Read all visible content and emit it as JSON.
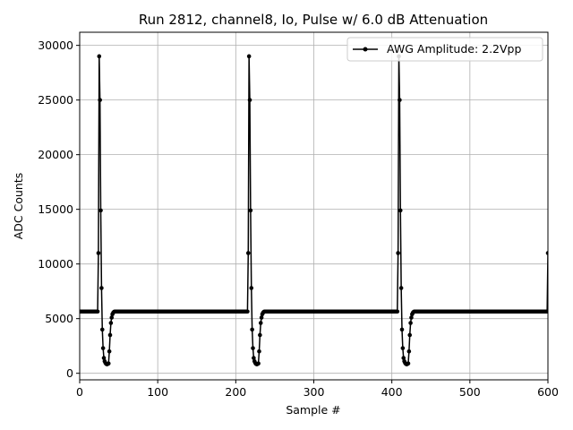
{
  "chart_data": {
    "type": "line",
    "title": "Run 2812, channel8, Io, Pulse w/ 6.0 dB Attenuation",
    "xlabel": "Sample #",
    "ylabel": "ADC Counts",
    "xlim": [
      0,
      600
    ],
    "ylim": [
      -600,
      31200
    ],
    "xticks": [
      0,
      100,
      200,
      300,
      400,
      500,
      600
    ],
    "yticks": [
      0,
      5000,
      10000,
      15000,
      20000,
      25000,
      30000
    ],
    "grid": true,
    "legend_position": "top-right",
    "baseline": 5650,
    "pulse_period": 192,
    "pulse_starts": [
      24,
      216,
      408,
      600
    ],
    "pulse_shape": [
      11000,
      29000,
      25000,
      14900,
      7800,
      4000,
      2300,
      1400,
      1100,
      950,
      850,
      820,
      850,
      900,
      2000,
      3500,
      4600,
      5100,
      5400,
      5550,
      5620
    ],
    "series": [
      {
        "name": "AWG Amplitude: 2.2Vpp",
        "color": "#000000",
        "marker": "circle"
      }
    ]
  }
}
